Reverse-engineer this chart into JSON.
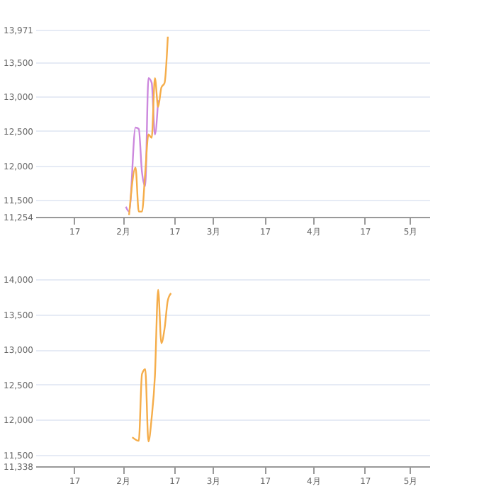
{
  "chart_data": [
    {
      "type": "line",
      "xlim": [
        "--01-05",
        "--05-07"
      ],
      "xticks": [
        {
          "value": "--01-17",
          "label": "17"
        },
        {
          "value": "--02-01",
          "label": "2月"
        },
        {
          "value": "--02-17",
          "label": "17"
        },
        {
          "value": "--03-01",
          "label": "3月"
        },
        {
          "value": "--03-17",
          "label": "17"
        },
        {
          "value": "--04-01",
          "label": "4月"
        },
        {
          "value": "--04-17",
          "label": "17"
        },
        {
          "value": "--05-01",
          "label": "5月"
        }
      ],
      "ylim": [
        11254,
        13971
      ],
      "yticks": [
        {
          "value": 11254,
          "label": "11,254"
        },
        {
          "value": 11500,
          "label": "11,500"
        },
        {
          "value": 12000,
          "label": "12,000"
        },
        {
          "value": 12500,
          "label": "12,500"
        },
        {
          "value": 13000,
          "label": "13,000"
        },
        {
          "value": 13500,
          "label": "13,500"
        },
        {
          "value": 13971,
          "label": "13,971"
        }
      ],
      "grid": "y",
      "legend": false,
      "marker": "none",
      "series": [
        {
          "color": "#cc88dd",
          "x": [
            "--02-02",
            "--02-03",
            "--02-05",
            "--02-06",
            "--02-07",
            "--02-08",
            "--02-09",
            "--02-10",
            "--02-11",
            "--02-12"
          ],
          "values": [
            11400,
            11330,
            12550,
            12530,
            11900,
            11700,
            13270,
            13200,
            12450,
            12950
          ]
        },
        {
          "color": "#f5ad4a",
          "x": [
            "--02-03",
            "--02-05",
            "--02-06",
            "--02-07",
            "--02-08",
            "--02-09",
            "--02-10",
            "--02-11",
            "--02-12",
            "--02-13",
            "--02-14",
            "--02-15"
          ],
          "values": [
            11280,
            11970,
            11330,
            11330,
            11900,
            12450,
            12400,
            13270,
            12850,
            13130,
            13200,
            13870
          ]
        }
      ]
    },
    {
      "type": "line",
      "xlim": [
        "--01-05",
        "--05-07"
      ],
      "xticks": [
        {
          "value": "--01-17",
          "label": "17"
        },
        {
          "value": "--02-01",
          "label": "2月"
        },
        {
          "value": "--02-17",
          "label": "17"
        },
        {
          "value": "--03-01",
          "label": "3月"
        },
        {
          "value": "--03-17",
          "label": "17"
        },
        {
          "value": "--04-01",
          "label": "4月"
        },
        {
          "value": "--04-17",
          "label": "17"
        },
        {
          "value": "--05-01",
          "label": "5月"
        }
      ],
      "ylim": [
        11338,
        14000
      ],
      "yticks": [
        {
          "value": 11338,
          "label": "11,338"
        },
        {
          "value": 11500,
          "label": "11,500"
        },
        {
          "value": 12000,
          "label": "12,000"
        },
        {
          "value": 12500,
          "label": "12,500"
        },
        {
          "value": 13000,
          "label": "13,000"
        },
        {
          "value": 13500,
          "label": "13,500"
        },
        {
          "value": 14000,
          "label": "14,000"
        }
      ],
      "grid": "y",
      "legend": false,
      "marker": "none",
      "series": [
        {
          "color": "#f5ad4a",
          "x": [
            "--02-04",
            "--02-06",
            "--02-07",
            "--02-08",
            "--02-09",
            "--02-10",
            "--02-11",
            "--02-12",
            "--02-13",
            "--02-14",
            "--02-15",
            "--02-16"
          ],
          "values": [
            11750,
            11700,
            12650,
            12720,
            11690,
            12030,
            12620,
            13850,
            13090,
            13300,
            13700,
            13800
          ]
        }
      ]
    }
  ]
}
